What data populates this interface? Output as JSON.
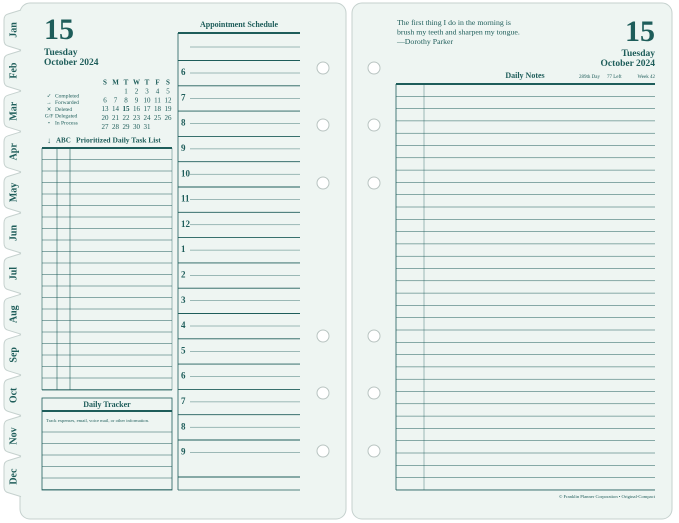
{
  "tabs": [
    "Jan",
    "Feb",
    "Mar",
    "Apr",
    "May",
    "Jun",
    "Jul",
    "Aug",
    "Sep",
    "Oct",
    "Nov",
    "Dec"
  ],
  "left_page": {
    "date": {
      "day": "15",
      "weekday": "Tuesday",
      "month_year": "October 2024"
    },
    "mini_calendar": {
      "headers": [
        "S",
        "M",
        "T",
        "W",
        "T",
        "F",
        "S"
      ],
      "weeks": [
        [
          null,
          null,
          1,
          2,
          3,
          4,
          5
        ],
        [
          6,
          7,
          8,
          9,
          10,
          11,
          12
        ],
        [
          13,
          14,
          15,
          16,
          17,
          18,
          19
        ],
        [
          20,
          21,
          22,
          23,
          24,
          25,
          26
        ],
        [
          27,
          28,
          29,
          30,
          31,
          null,
          null
        ]
      ]
    },
    "legend": [
      {
        "symbol": "✓",
        "label": "Completed"
      },
      {
        "symbol": "→",
        "label": "Forwarded"
      },
      {
        "symbol": "✕",
        "label": "Deleted"
      },
      {
        "symbol": "G/F",
        "label": "Delegated"
      },
      {
        "symbol": "•",
        "label": "In Process"
      }
    ],
    "task_list": {
      "header_symbol": "↓",
      "header_abc": "ABC",
      "title": "Prioritized Daily Task List"
    },
    "daily_tracker": {
      "title": "Daily Tracker",
      "note": "Track expenses, email, voice mail, or other information."
    },
    "appointment_schedule": {
      "title": "Appointment Schedule",
      "hours": [
        6,
        7,
        8,
        9,
        10,
        11,
        12,
        1,
        2,
        3,
        4,
        5,
        6,
        7,
        8,
        9
      ]
    }
  },
  "right_page": {
    "quote": {
      "lines": [
        "The first thing I do in the morning is",
        "brush my teeth and sharpen my tongue."
      ],
      "attribution": "—Dorothy Parker"
    },
    "date": {
      "day": "15",
      "weekday": "Tuesday",
      "month_year": "October 2024"
    },
    "daily_notes": {
      "title": "Daily Notes",
      "day_of_year": "289th Day",
      "days_left": "77 Left",
      "week": "Week 42"
    },
    "footer": "© Franklin Planner Corporation • Original-Compact"
  }
}
